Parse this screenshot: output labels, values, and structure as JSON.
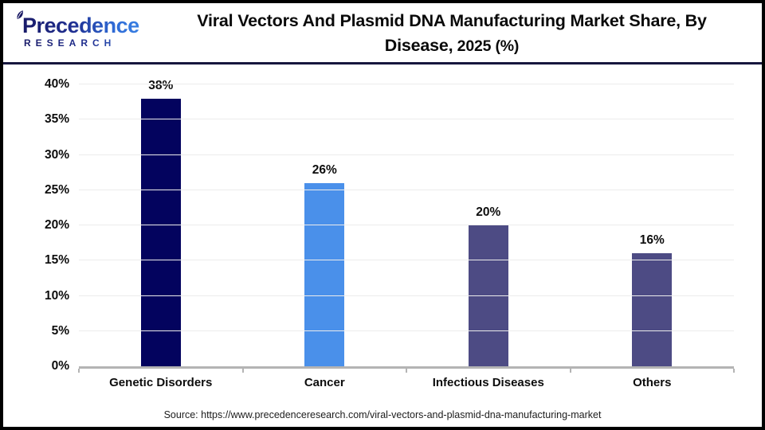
{
  "logo": {
    "name": "Precedence",
    "subtitle": "RESEARCH"
  },
  "header": {
    "title_line1": "Viral Vectors And Plasmid DNA Manufacturing Market Share, By",
    "title_line2_main": "Disease,",
    "title_line2_year": " 2025 (%)"
  },
  "source_text": "Source: https://www.precedenceresearch.com/viral-vectors-and-plasmid-dna-manufacturing-market",
  "colors": {
    "navy_bar": "#03035e",
    "blue_bar": "#4a90ea",
    "slate_bar": "#4d4b84",
    "divider": "#17173e",
    "gridline": "#ececec",
    "axis": "#b4b4b4",
    "logo_navy": "#181863",
    "logo_blue": "#3d8ae9"
  },
  "chart_data": {
    "type": "bar",
    "title": "Viral Vectors And Plasmid DNA Manufacturing Market Share, By Disease, 2025 (%)",
    "categories": [
      "Genetic Disorders",
      "Cancer",
      "Infectious Diseases",
      "Others"
    ],
    "values": [
      38,
      26,
      20,
      16
    ],
    "value_labels": [
      "38%",
      "26%",
      "20%",
      "16%"
    ],
    "bar_colors": [
      "#03035e",
      "#4a90ea",
      "#4d4b84",
      "#4d4b84"
    ],
    "xlabel": "",
    "ylabel": "",
    "ylim": [
      0,
      40
    ],
    "ytick_step": 5,
    "ytick_labels": [
      "0%",
      "5%",
      "10%",
      "15%",
      "20%",
      "25%",
      "30%",
      "35%",
      "40%"
    ],
    "grid": "horizontal",
    "legend": "none"
  }
}
